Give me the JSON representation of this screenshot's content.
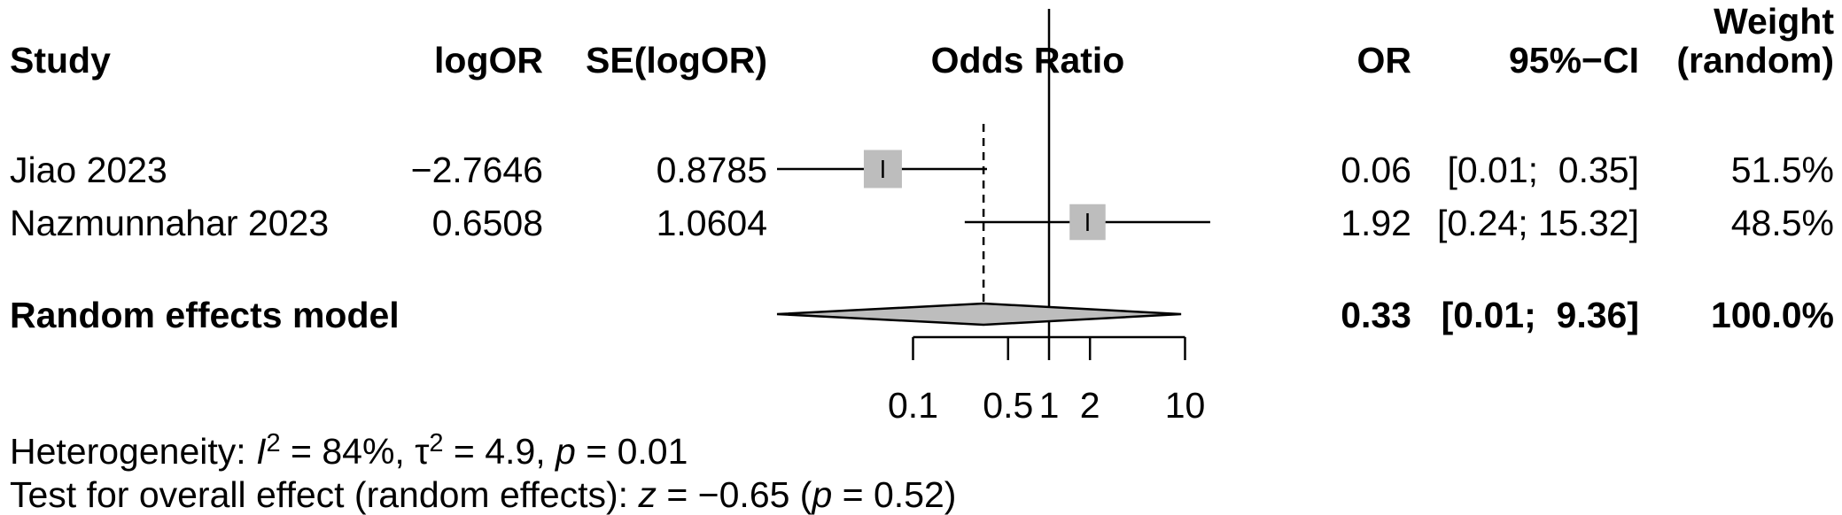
{
  "chart_data": {
    "type": "forest",
    "headers": {
      "study": "Study",
      "logor": "logOR",
      "se": "SE(logOR)",
      "plot": "Odds Ratio",
      "or": "OR",
      "ci": "95%−CI",
      "weight_line1": "Weight",
      "weight_line2": "(random)"
    },
    "studies": [
      {
        "name": "Jiao 2023",
        "logor": "−2.7646",
        "se": "0.8785",
        "or_label": "0.06",
        "ci_label": "[0.01;  0.35]",
        "weight_label": "51.5%",
        "or": 0.06,
        "lower": 0.01,
        "upper": 0.35,
        "weight": 51.5
      },
      {
        "name": "Nazmunnahar 2023",
        "logor": "0.6508",
        "se": "1.0604",
        "or_label": "1.92",
        "ci_label": "[0.24; 15.32]",
        "weight_label": "48.5%",
        "or": 1.92,
        "lower": 0.24,
        "upper": 15.32,
        "weight": 48.5
      }
    ],
    "pooled": {
      "name": "Random effects model",
      "or_label": "0.33",
      "ci_label": "[0.01;  9.36]",
      "weight_label": "100.0%",
      "or": 0.33,
      "lower": 0.01,
      "upper": 9.36
    },
    "x_scale": "log",
    "xlim": [
      0.01,
      20
    ],
    "ticks": [
      0.1,
      0.5,
      1,
      2,
      10
    ],
    "tick_labels": [
      "0.1",
      "0.5",
      "1",
      "2",
      "10"
    ],
    "null_value": 1,
    "colors": {
      "square": "#bdbdbd",
      "diamond": "#bdbdbd",
      "line": "#000000"
    },
    "heterogeneity": {
      "label": "Heterogeneity: ",
      "i_symbol": "I",
      "i2": " = 84%, ",
      "tau_symbol": "τ",
      "tau2": " = 4.9, ",
      "p_symbol": "p",
      "p": " = 0.01",
      "sup": "2"
    },
    "overall": {
      "label": "Test for overall effect (random effects): ",
      "z_symbol": "z",
      "z": " = −0.65 (",
      "p_symbol": "p",
      "p": " = 0.52)"
    }
  }
}
